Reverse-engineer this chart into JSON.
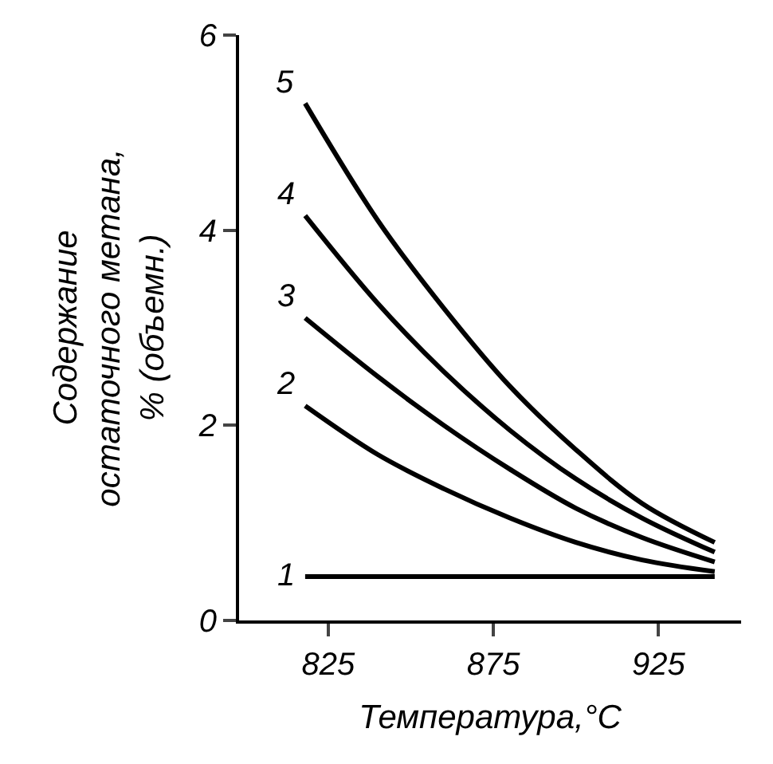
{
  "chart_data": {
    "type": "line",
    "xlabel": "Температура,°С",
    "ylabel": "Содержание\nостаточного метана,\n% (объемн.)",
    "x": [
      818,
      840,
      860,
      880,
      900,
      920,
      942
    ],
    "xlim": [
      798,
      950
    ],
    "xticks": [
      825,
      875,
      925
    ],
    "ylim": [
      0,
      6
    ],
    "yticks": [
      0,
      2,
      4,
      6
    ],
    "legend": false,
    "marker": "none",
    "line_style": "solid",
    "series": [
      {
        "name": "1",
        "color": "#000000",
        "values": [
          0.45,
          0.45,
          0.45,
          0.45,
          0.45,
          0.45,
          0.45
        ]
      },
      {
        "name": "2",
        "color": "#000000",
        "values": [
          2.2,
          1.7,
          1.35,
          1.05,
          0.8,
          0.62,
          0.5
        ]
      },
      {
        "name": "3",
        "color": "#000000",
        "values": [
          3.1,
          2.5,
          2.0,
          1.55,
          1.15,
          0.85,
          0.6
        ]
      },
      {
        "name": "4",
        "color": "#000000",
        "values": [
          4.15,
          3.25,
          2.55,
          1.95,
          1.45,
          1.05,
          0.7
        ]
      },
      {
        "name": "5",
        "color": "#000000",
        "values": [
          5.3,
          4.1,
          3.2,
          2.4,
          1.75,
          1.2,
          0.8
        ]
      }
    ]
  }
}
